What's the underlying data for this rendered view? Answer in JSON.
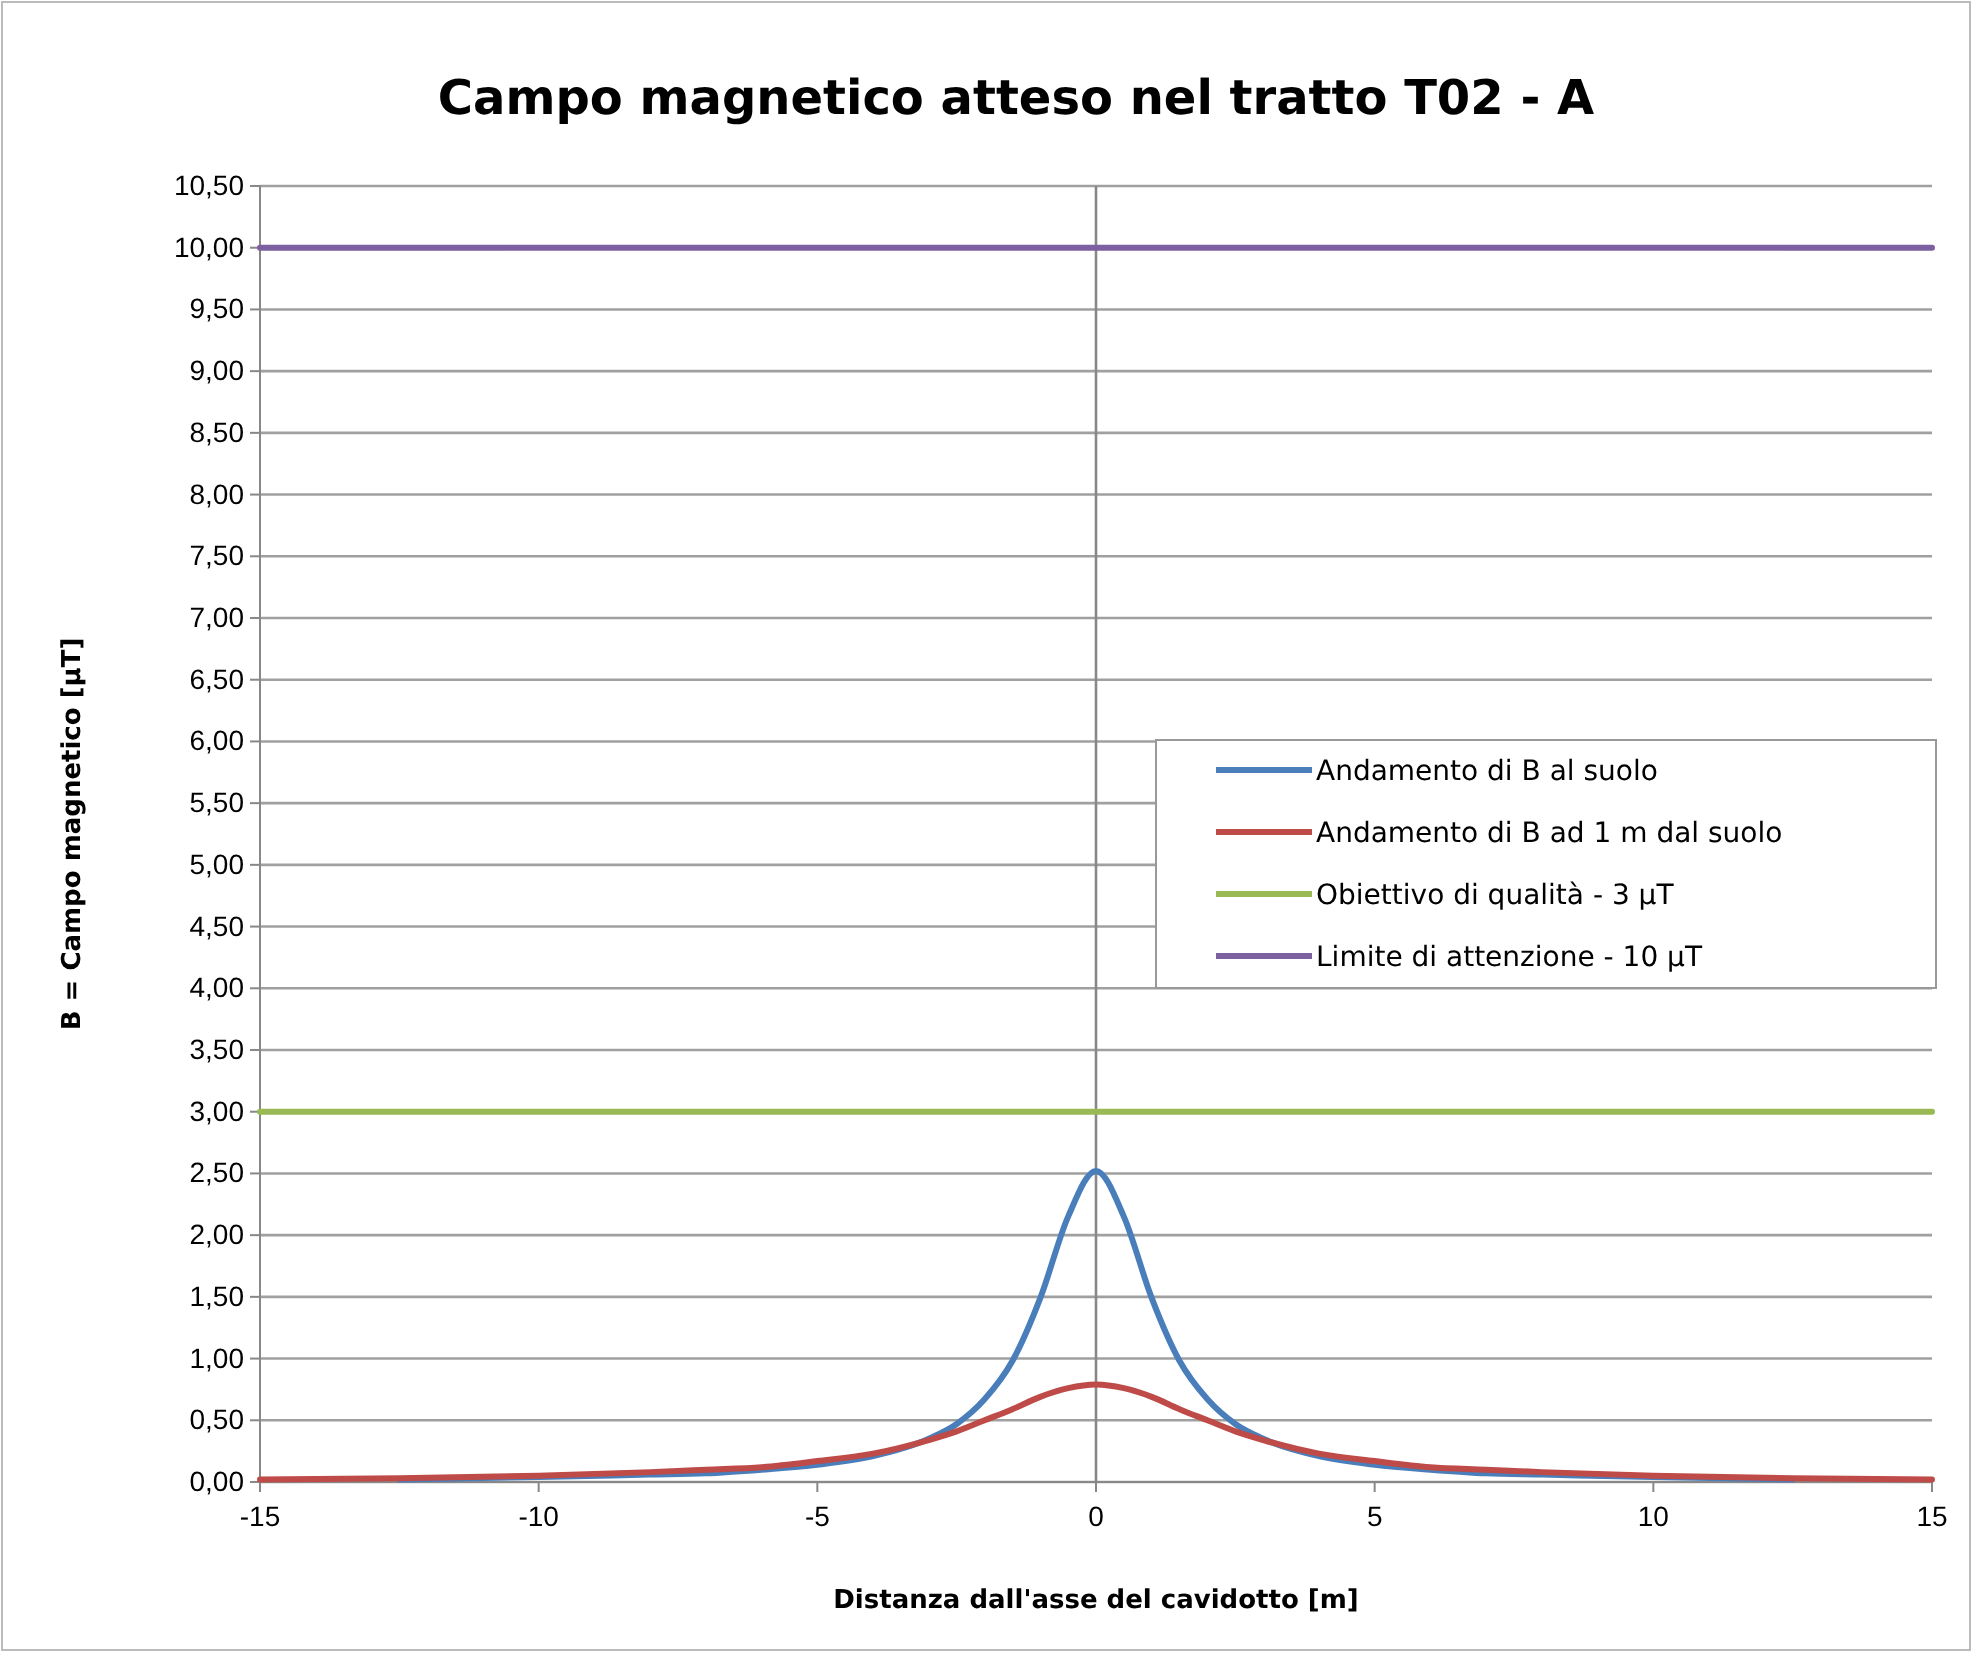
{
  "chart_data": {
    "type": "line",
    "title": "Campo magnetico atteso nel tratto T02 - A",
    "xlabel": "Distanza dall'asse del cavidotto [m]",
    "ylabel": "B = Campo magnetico [µT]",
    "xlim": [
      -15,
      15
    ],
    "xticks": [
      -15,
      -10,
      -5,
      0,
      5,
      10,
      15
    ],
    "ylim": [
      0,
      10.5
    ],
    "yticks": [
      {
        "value": 0,
        "label": "0,00"
      },
      {
        "value": 0.5,
        "label": "0,50"
      },
      {
        "value": 1,
        "label": "1,00"
      },
      {
        "value": 1.5,
        "label": "1,50"
      },
      {
        "value": 2,
        "label": "2,00"
      },
      {
        "value": 2.5,
        "label": "2,50"
      },
      {
        "value": 3,
        "label": "3,00"
      },
      {
        "value": 3.5,
        "label": "3,50"
      },
      {
        "value": 4,
        "label": "4,00"
      },
      {
        "value": 4.5,
        "label": "4,50"
      },
      {
        "value": 5,
        "label": "5,00"
      },
      {
        "value": 5.5,
        "label": "5,50"
      },
      {
        "value": 6,
        "label": "6,00"
      },
      {
        "value": 6.5,
        "label": "6,50"
      },
      {
        "value": 7,
        "label": "7,00"
      },
      {
        "value": 7.5,
        "label": "7,50"
      },
      {
        "value": 8,
        "label": "8,00"
      },
      {
        "value": 8.5,
        "label": "8,50"
      },
      {
        "value": 9,
        "label": "9,00"
      },
      {
        "value": 9.5,
        "label": "9,50"
      },
      {
        "value": 10,
        "label": "10,00"
      },
      {
        "value": 10.5,
        "label": "10,50"
      }
    ],
    "grid": "y",
    "legend": "right",
    "marker": "none",
    "line_style": "solid",
    "series": [
      {
        "name": "Andamento di B al suolo",
        "color": "#4a7ebb",
        "x": [
          -12.5,
          -10,
          -8,
          -7,
          -6,
          -5,
          -4,
          -3,
          -2.5,
          -2,
          -1.5,
          -1,
          -0.5,
          0,
          0.5,
          1,
          1.5,
          2,
          2.5,
          3,
          4,
          5,
          6,
          7,
          8,
          10,
          12.5
        ],
        "values": [
          0.02,
          0.04,
          0.06,
          0.07,
          0.1,
          0.14,
          0.21,
          0.35,
          0.47,
          0.67,
          0.98,
          1.49,
          2.15,
          2.52,
          2.15,
          1.49,
          0.98,
          0.67,
          0.47,
          0.35,
          0.21,
          0.14,
          0.1,
          0.07,
          0.06,
          0.04,
          0.02
        ]
      },
      {
        "name": "Andamento di B ad 1 m dal suolo",
        "color": "#be4b48",
        "x": [
          -15,
          -12.5,
          -10,
          -8,
          -7,
          -6,
          -5,
          -4,
          -3,
          -2.5,
          -2,
          -1.5,
          -1,
          -0.5,
          0,
          0.5,
          1,
          1.5,
          2,
          2.5,
          3,
          4,
          5,
          6,
          7,
          8,
          10,
          12.5,
          15
        ],
        "values": [
          0.02,
          0.03,
          0.05,
          0.08,
          0.1,
          0.12,
          0.17,
          0.23,
          0.34,
          0.41,
          0.5,
          0.59,
          0.69,
          0.76,
          0.79,
          0.76,
          0.69,
          0.59,
          0.5,
          0.41,
          0.34,
          0.23,
          0.17,
          0.12,
          0.1,
          0.08,
          0.05,
          0.03,
          0.02
        ]
      },
      {
        "name": "Obiettivo di qualità - 3 µT",
        "color": "#98b954",
        "x": [
          -15,
          15
        ],
        "values": [
          3,
          3
        ]
      },
      {
        "name": "Limite di attenzione - 10 µT",
        "color": "#7d60a0",
        "x": [
          -15,
          15
        ],
        "values": [
          10,
          10
        ]
      }
    ]
  }
}
